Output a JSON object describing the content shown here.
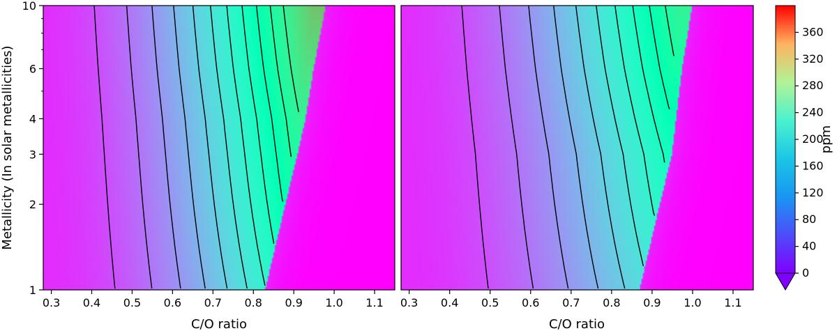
{
  "figure": {
    "colorbar": {
      "label": "ppm",
      "ticks": [
        0,
        40,
        80,
        120,
        160,
        200,
        240,
        280,
        320,
        360
      ],
      "range": [
        0,
        400
      ],
      "colormap": "rainbow",
      "extend": "min"
    },
    "panels": [
      {
        "id": "left",
        "xlabel": "C/O ratio",
        "ylabel": "Metallicity (In solar metallicities)",
        "xlim": [
          0.28,
          1.15
        ],
        "ylim": [
          1,
          10
        ],
        "yscale": "log",
        "xticks": [
          0.3,
          0.4,
          0.5,
          0.6,
          0.7,
          0.8,
          0.9,
          1.0,
          1.1
        ],
        "xtick_labels": [
          "0.3",
          "0.4",
          "0.5",
          "0.6",
          "0.7",
          "0.8",
          "0.9",
          "1.0",
          "1.1"
        ],
        "yticks": [
          1,
          2,
          3,
          4,
          6,
          10
        ],
        "ytick_labels": [
          "1",
          "2",
          "3",
          "4",
          "6",
          "10"
        ]
      },
      {
        "id": "right",
        "xlabel": "C/O ratio",
        "ylabel": "",
        "xlim": [
          0.28,
          1.15
        ],
        "ylim": [
          1,
          10
        ],
        "yscale": "log",
        "xticks": [
          0.3,
          0.4,
          0.5,
          0.6,
          0.7,
          0.8,
          0.9,
          1.0,
          1.1
        ],
        "xtick_labels": [
          "0.3",
          "0.4",
          "0.5",
          "0.6",
          "0.7",
          "0.8",
          "0.9",
          "1.0",
          "1.1"
        ],
        "yticks": [],
        "ytick_labels": []
      }
    ]
  },
  "chart_data": [
    {
      "type": "heatmap",
      "title": "",
      "xlabel": "C/O ratio",
      "ylabel": "Metallicity (In solar metallicities)",
      "xlim": [
        0.28,
        1.15
      ],
      "ylim": [
        1,
        10
      ],
      "yscale": "log",
      "zlabel": "ppm",
      "zlim": [
        0,
        400
      ],
      "contour_levels": [
        20,
        40,
        60,
        80,
        100,
        120,
        140,
        160,
        180,
        200,
        220,
        240
      ],
      "cutoff_co_by_metallicity": {
        "1": 0.83,
        "2": 0.88,
        "3": 0.91,
        "4": 0.93,
        "6": 0.95,
        "10": 0.98
      },
      "peak_ppm": 290
    },
    {
      "type": "heatmap",
      "title": "",
      "xlabel": "C/O ratio",
      "ylabel": "",
      "xlim": [
        0.28,
        1.15
      ],
      "ylim": [
        1,
        10
      ],
      "yscale": "log",
      "zlabel": "ppm",
      "zlim": [
        0,
        400
      ],
      "contour_levels": [
        20,
        40,
        60,
        80,
        100,
        120,
        140,
        160,
        180,
        200,
        220,
        240
      ],
      "cutoff_co_by_metallicity": {
        "1": 0.87,
        "2": 0.92,
        "3": 0.95,
        "4": 0.96,
        "6": 0.975,
        "10": 1.0
      },
      "peak_ppm": 240
    }
  ]
}
